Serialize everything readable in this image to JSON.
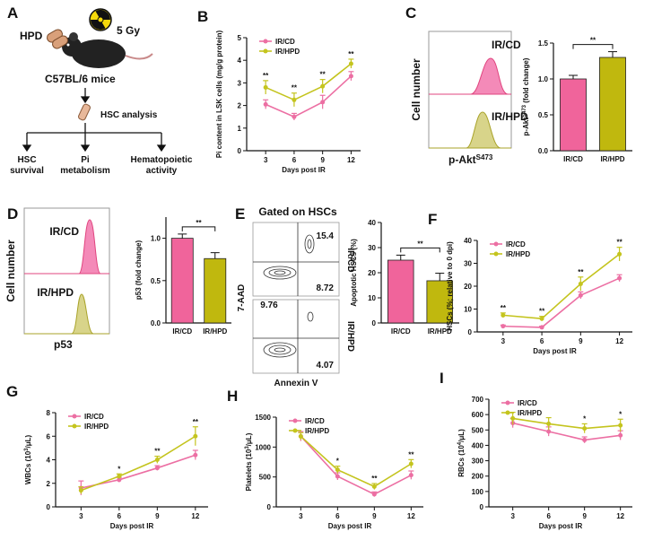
{
  "diagram": {
    "panel": "A",
    "dose": "5 Gy",
    "diet": "HPD",
    "mice": "C57BL/6 mice",
    "analysis": "HSC analysis",
    "outcomes": [
      [
        "HSC",
        "survival"
      ],
      [
        "Pi",
        "metabolism"
      ],
      [
        "Hematopoietic",
        "activity"
      ]
    ]
  },
  "flow_c": {
    "panel": "C",
    "top": "IR/CD",
    "bottom": "IR/HPD",
    "ylabel": "Cell number",
    "xlabel": [
      "p-Akt",
      "S473"
    ]
  },
  "flow_d": {
    "panel": "D",
    "top": "IR/CD",
    "bottom": "IR/HPD",
    "ylabel": "Cell number",
    "xlabel": "p53"
  },
  "flow_e": {
    "panel": "E",
    "title": "Gated on HSCs",
    "ylabel": "7-AAD",
    "xlabel": "Annexin V",
    "rows": [
      "IR/CD",
      "IR/HPD"
    ],
    "quadrant_values": [
      15.4,
      8.72,
      9.76,
      4.07
    ]
  },
  "chart_data": [
    {
      "type": "line",
      "panel": "B",
      "ylabel": [
        "Pi content in LSK cells (mg/g protein)"
      ],
      "xlabel": "Days post IR",
      "x": [
        3,
        6,
        9,
        12
      ],
      "xlim": [
        1,
        13
      ],
      "xticks": [
        3,
        6,
        9,
        12
      ],
      "ylim": [
        0,
        5
      ],
      "yticks": [
        0,
        1,
        2,
        3,
        4,
        5
      ],
      "legend": "upper left",
      "series": [
        {
          "name": "IR/CD",
          "color": "#ec6fa3",
          "values": [
            2.05,
            1.5,
            2.15,
            3.3
          ],
          "errors": [
            0.2,
            0.15,
            0.3,
            0.2
          ]
        },
        {
          "name": "IR/HPD",
          "color": "#c4c41e",
          "values": [
            2.8,
            2.25,
            2.85,
            3.85
          ],
          "errors": [
            0.3,
            0.3,
            0.3,
            0.2
          ]
        }
      ],
      "significance": [
        "**",
        "**",
        "**",
        "**"
      ]
    },
    {
      "type": "bar",
      "ylabel": [
        "p-Akt",
        "S473",
        " (fold change)"
      ],
      "categories": [
        "IR/CD",
        "IR/HPD"
      ],
      "colors": [
        "#f0649b",
        "#c0b80e"
      ],
      "values": [
        1.0,
        1.3
      ],
      "errors": [
        0.05,
        0.08
      ],
      "ylim": [
        0,
        1.5
      ],
      "yticks": [
        {
          "value": 0,
          "label": "0.0"
        },
        0.5,
        {
          "value": 1,
          "label": "1.0"
        },
        1.5
      ],
      "significance": "**"
    },
    {
      "type": "bar",
      "ylabel": [
        "p53 (fold change)"
      ],
      "categories": [
        "IR/CD",
        "IR/HPD"
      ],
      "colors": [
        "#f0649b",
        "#c0b80e"
      ],
      "values": [
        1.0,
        0.76
      ],
      "errors": [
        0.05,
        0.07
      ],
      "ylim": [
        0,
        1.25
      ],
      "yticks": [
        {
          "value": 0,
          "label": "0.0"
        },
        0.5,
        {
          "value": 1,
          "label": "1.0"
        }
      ],
      "significance": "**"
    },
    {
      "type": "bar",
      "ylabel": [
        "Apoptotic HSCs (%)"
      ],
      "categories": [
        "IR/CD",
        "IR/HPD"
      ],
      "colors": [
        "#f0649b",
        "#c0b80e"
      ],
      "values": [
        25,
        16.8
      ],
      "errors": [
        2,
        3
      ],
      "ylim": [
        0,
        40
      ],
      "yticks": [
        0,
        10,
        20,
        30,
        40
      ],
      "significance": "**"
    },
    {
      "type": "line",
      "panel": "F",
      "ylabel": [
        "HSCs (%; relative to 0 dpi)"
      ],
      "xlabel": "Days post IR",
      "x": [
        3,
        6,
        9,
        12
      ],
      "xlim": [
        1,
        13
      ],
      "xticks": [
        3,
        6,
        9,
        12
      ],
      "ylim": [
        0,
        40
      ],
      "yticks": [
        0,
        10,
        20,
        30,
        40
      ],
      "legend": "upper left",
      "series": [
        {
          "name": "IR/CD",
          "color": "#ec6fa3",
          "values": [
            2.5,
            2,
            16,
            23.5
          ],
          "errors": [
            0.5,
            0.5,
            1.5,
            1.5
          ]
        },
        {
          "name": "IR/HPD",
          "color": "#c4c41e",
          "values": [
            7.3,
            5.8,
            21,
            34
          ],
          "errors": [
            1,
            1,
            3,
            3
          ]
        }
      ],
      "significance": [
        "**",
        "**",
        "**",
        "**"
      ]
    },
    {
      "type": "line",
      "panel": "G",
      "ylabel": [
        "WBCs (10",
        "3",
        "/μL)"
      ],
      "xlabel": "Days post IR",
      "x": [
        3,
        6,
        9,
        12
      ],
      "xlim": [
        1,
        13
      ],
      "xticks": [
        3,
        6,
        9,
        12
      ],
      "ylim": [
        0,
        8
      ],
      "yticks": [
        0,
        2,
        4,
        6,
        8
      ],
      "legend": "upper left",
      "series": [
        {
          "name": "IR/CD",
          "color": "#ec6fa3",
          "values": [
            1.6,
            2.3,
            3.3,
            4.4
          ],
          "errors": [
            0.6,
            0.2,
            0.2,
            0.4
          ]
        },
        {
          "name": "IR/HPD",
          "color": "#c4c41e",
          "values": [
            1.4,
            2.6,
            4.0,
            6.0
          ],
          "errors": [
            0.3,
            0.2,
            0.3,
            0.8
          ]
        }
      ],
      "significance": [
        null,
        "*",
        "**",
        "**"
      ]
    },
    {
      "type": "line",
      "panel": "H",
      "ylabel": [
        "Platelets (10",
        "3",
        "/μL)"
      ],
      "xlabel": "Days post IR",
      "x": [
        3,
        6,
        9,
        12
      ],
      "xlim": [
        1,
        13
      ],
      "xticks": [
        3,
        6,
        9,
        12
      ],
      "ylim": [
        0,
        1500
      ],
      "yticks": [
        0,
        500,
        1000,
        1500
      ],
      "legend": "upper left",
      "series": [
        {
          "name": "IR/CD",
          "color": "#ec6fa3",
          "values": [
            1180,
            510,
            210,
            530
          ],
          "errors": [
            80,
            60,
            40,
            70
          ]
        },
        {
          "name": "IR/HPD",
          "color": "#c4c41e",
          "values": [
            1180,
            620,
            340,
            720
          ],
          "errors": [
            60,
            60,
            50,
            70
          ]
        }
      ],
      "significance": [
        null,
        "*",
        "**",
        "**"
      ]
    },
    {
      "type": "line",
      "panel": "I",
      "ylabel": [
        "RBCs (10",
        "4",
        "/μL)"
      ],
      "xlabel": "Days post IR",
      "x": [
        3,
        6,
        9,
        12
      ],
      "xlim": [
        1,
        13
      ],
      "xticks": [
        3,
        6,
        9,
        12
      ],
      "ylim": [
        0,
        700
      ],
      "yticks": [
        0,
        100,
        200,
        300,
        400,
        500,
        600,
        700
      ],
      "legend": "upper left",
      "series": [
        {
          "name": "IR/CD",
          "color": "#ec6fa3",
          "values": [
            545,
            490,
            435,
            465
          ],
          "errors": [
            30,
            30,
            20,
            30
          ]
        },
        {
          "name": "IR/HPD",
          "color": "#c4c41e",
          "values": [
            575,
            540,
            510,
            530
          ],
          "errors": [
            40,
            40,
            30,
            40
          ]
        }
      ],
      "significance": [
        null,
        null,
        "*",
        "*"
      ]
    }
  ]
}
